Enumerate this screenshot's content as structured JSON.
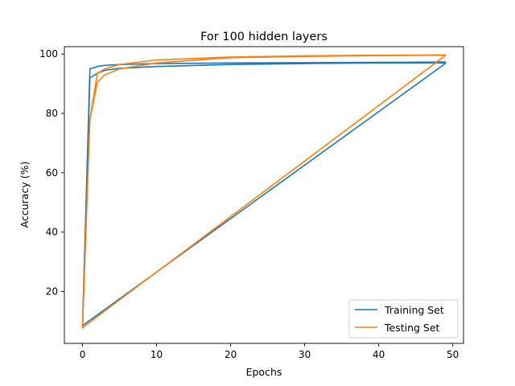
{
  "chart_data": {
    "type": "line",
    "title": "For 100 hidden layers",
    "xlabel": "Epochs",
    "ylabel": "Accuracy (%)",
    "xlim": [
      -2.45,
      51.45
    ],
    "ylim": [
      2.5,
      102.5
    ],
    "xticks": [
      0,
      10,
      20,
      30,
      40,
      50
    ],
    "yticks": [
      20,
      40,
      60,
      80,
      100
    ],
    "grid": false,
    "legend_position": "bottom-right",
    "series": [
      {
        "name": "Training Set",
        "color": "#1f77b4",
        "x": [
          0,
          1,
          2,
          3,
          5,
          10,
          20,
          30,
          40,
          49,
          49,
          48,
          40,
          30,
          20,
          10,
          5,
          3,
          2,
          1,
          0,
          49
        ],
        "y": [
          8,
          92,
          93.5,
          94.5,
          95.2,
          95.8,
          96.5,
          96.8,
          97,
          97,
          97.3,
          97.3,
          97.2,
          97.1,
          97,
          96.8,
          96.5,
          96.2,
          95.8,
          95,
          8.5,
          96.8
        ]
      },
      {
        "name": "Testing Set",
        "color": "#ff7f0e",
        "x": [
          0,
          1,
          2,
          3,
          5,
          10,
          20,
          30,
          40,
          49,
          49,
          40,
          30,
          20,
          10,
          5,
          3,
          2,
          1,
          0,
          49
        ],
        "y": [
          7.5,
          78,
          90.5,
          93,
          95,
          97,
          98.8,
          99.2,
          99.5,
          99.6,
          99.7,
          99.6,
          99.4,
          99,
          98,
          96.5,
          95,
          93.5,
          78,
          7.8,
          99.5
        ]
      }
    ]
  }
}
